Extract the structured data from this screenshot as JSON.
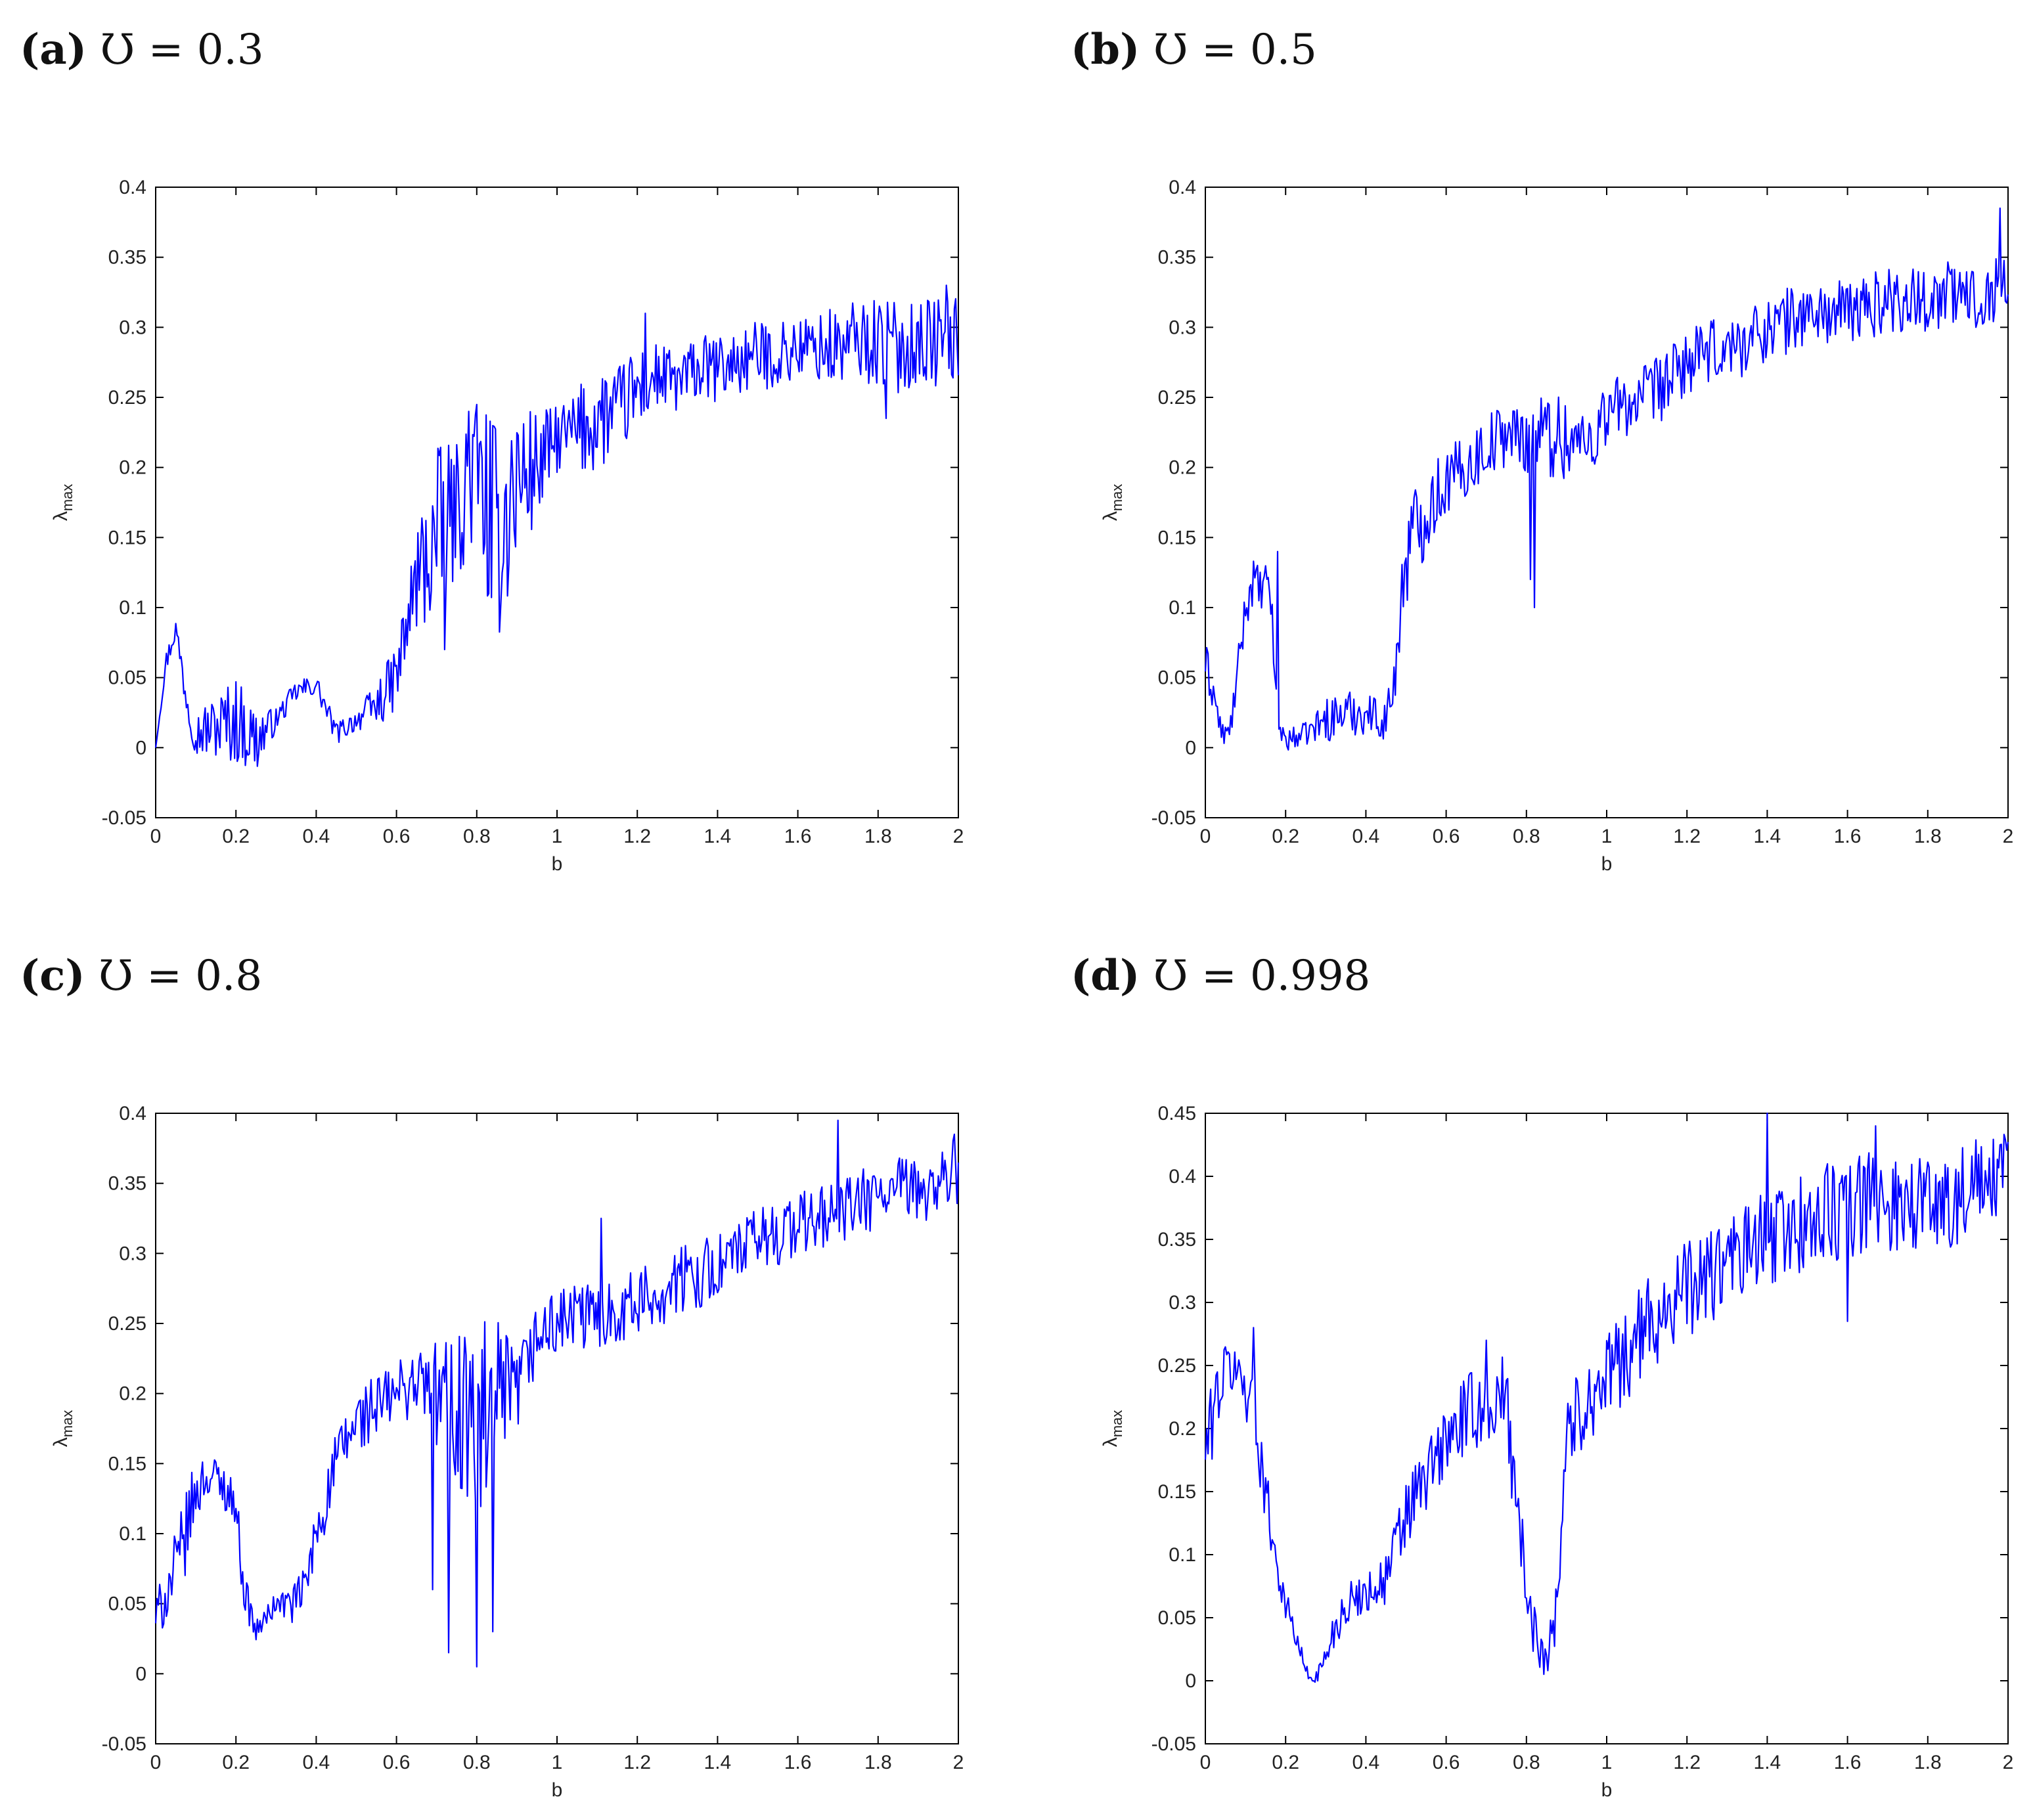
{
  "panels": [
    {
      "tag": "(a)",
      "symbol": "Ʊ",
      "equals": " = ",
      "value": "0.3"
    },
    {
      "tag": "(b)",
      "symbol": "Ʊ",
      "equals": " = ",
      "value": "0.5"
    },
    {
      "tag": "(c)",
      "symbol": "Ʊ",
      "equals": " = ",
      "value": "0.8"
    },
    {
      "tag": "(d)",
      "symbol": "Ʊ",
      "equals": " = ",
      "value": "0.998"
    }
  ],
  "colors": {
    "series": "#0000ff",
    "axis": "#000000"
  },
  "chart_data": [
    {
      "type": "line",
      "title": "(a) Ʊ = 0.3",
      "xlabel": "b",
      "ylabel": "λmax",
      "xlim": [
        0,
        2
      ],
      "ylim": [
        -0.05,
        0.4
      ],
      "xticks": [
        0,
        0.2,
        0.4,
        0.6,
        0.8,
        1,
        1.2,
        1.4,
        1.6,
        1.8,
        2
      ],
      "yticks": [
        -0.05,
        0,
        0.05,
        0.1,
        0.15,
        0.2,
        0.25,
        0.3,
        0.35,
        0.4
      ],
      "grid": false,
      "series": [
        {
          "x": [
            0,
            0.025,
            0.05,
            0.075,
            0.1,
            0.15,
            0.2,
            0.25,
            0.3,
            0.35,
            0.4,
            0.45,
            0.5,
            0.55,
            0.6,
            0.65,
            0.7,
            0.75,
            0.8,
            0.85,
            0.9,
            0.95,
            1.0,
            1.05,
            1.1,
            1.15,
            1.2,
            1.25,
            1.3,
            1.35,
            1.4,
            1.45,
            1.5,
            1.55,
            1.6,
            1.65,
            1.7,
            1.75,
            1.8,
            1.85,
            1.9,
            1.95,
            2.0
          ],
          "y": [
            0.0,
            0.06,
            0.085,
            0.04,
            0.01,
            0.015,
            0.02,
            0.005,
            0.02,
            0.04,
            0.045,
            0.01,
            0.02,
            0.03,
            0.05,
            0.12,
            0.15,
            0.17,
            0.2,
            0.15,
            0.19,
            0.2,
            0.22,
            0.225,
            0.235,
            0.24,
            0.255,
            0.265,
            0.26,
            0.27,
            0.27,
            0.275,
            0.28,
            0.28,
            0.285,
            0.285,
            0.285,
            0.29,
            0.29,
            0.285,
            0.29,
            0.29,
            0.29
          ],
          "noise": [
            0,
            0.005,
            0.005,
            0.01,
            0.01,
            0.015,
            0.02,
            0.015,
            0.005,
            0.005,
            0.005,
            0.005,
            0.005,
            0.01,
            0.015,
            0.025,
            0.04,
            0.03,
            0.035,
            0.05,
            0.04,
            0.025,
            0.015,
            0.02,
            0.025,
            0.02,
            0.02,
            0.015,
            0.015,
            0.015,
            0.015,
            0.015,
            0.015,
            0.015,
            0.015,
            0.015,
            0.02,
            0.02,
            0.02,
            0.02,
            0.02,
            0.02,
            0.02
          ],
          "spikes": [
            [
              0.72,
              0.07
            ],
            [
              0.78,
              0.24
            ],
            [
              0.83,
              0.11
            ],
            [
              1.22,
              0.31
            ],
            [
              1.82,
              0.235
            ],
            [
              1.97,
              0.33
            ]
          ]
        }
      ]
    },
    {
      "type": "line",
      "title": "(b) Ʊ = 0.5",
      "xlabel": "b",
      "ylabel": "λmax",
      "xlim": [
        0,
        2
      ],
      "ylim": [
        -0.05,
        0.4
      ],
      "xticks": [
        0,
        0.2,
        0.4,
        0.6,
        0.8,
        1,
        1.2,
        1.4,
        1.6,
        1.8,
        2
      ],
      "yticks": [
        -0.05,
        0,
        0.05,
        0.1,
        0.15,
        0.2,
        0.25,
        0.3,
        0.35,
        0.4
      ],
      "grid": false,
      "series": [
        {
          "x": [
            0,
            0.02,
            0.04,
            0.06,
            0.08,
            0.1,
            0.12,
            0.14,
            0.16,
            0.18,
            0.2,
            0.25,
            0.3,
            0.35,
            0.4,
            0.45,
            0.47,
            0.5,
            0.55,
            0.6,
            0.65,
            0.7,
            0.75,
            0.8,
            0.85,
            0.9,
            0.95,
            1.0,
            1.05,
            1.1,
            1.15,
            1.2,
            1.25,
            1.3,
            1.35,
            1.4,
            1.45,
            1.5,
            1.55,
            1.6,
            1.65,
            1.7,
            1.75,
            1.8,
            1.85,
            1.9,
            1.95,
            2.0
          ],
          "y": [
            0.06,
            0.04,
            0.01,
            0.01,
            0.05,
            0.1,
            0.12,
            0.11,
            0.12,
            0.02,
            0.005,
            0.01,
            0.02,
            0.025,
            0.025,
            0.02,
            0.045,
            0.14,
            0.17,
            0.19,
            0.2,
            0.215,
            0.225,
            0.22,
            0.225,
            0.22,
            0.215,
            0.24,
            0.245,
            0.25,
            0.26,
            0.275,
            0.28,
            0.285,
            0.29,
            0.3,
            0.305,
            0.31,
            0.31,
            0.31,
            0.315,
            0.32,
            0.32,
            0.32,
            0.325,
            0.32,
            0.325,
            0.33
          ],
          "noise": [
            0.01,
            0.01,
            0.005,
            0.005,
            0.01,
            0.01,
            0.01,
            0.01,
            0.01,
            0.01,
            0.005,
            0.005,
            0.01,
            0.01,
            0.01,
            0.01,
            0.01,
            0.025,
            0.02,
            0.015,
            0.015,
            0.015,
            0.015,
            0.015,
            0.02,
            0.02,
            0.02,
            0.015,
            0.015,
            0.015,
            0.015,
            0.015,
            0.015,
            0.015,
            0.015,
            0.015,
            0.015,
            0.015,
            0.015,
            0.015,
            0.015,
            0.015,
            0.015,
            0.015,
            0.015,
            0.015,
            0.015,
            0.015
          ],
          "spikes": [
            [
              0.18,
              0.14
            ],
            [
              0.81,
              0.12
            ],
            [
              0.82,
              0.1
            ],
            [
              1.98,
              0.385
            ]
          ]
        }
      ]
    },
    {
      "type": "line",
      "title": "(c) Ʊ = 0.8",
      "xlabel": "b",
      "ylabel": "λmax",
      "xlim": [
        0,
        2
      ],
      "ylim": [
        -0.05,
        0.4
      ],
      "xticks": [
        0,
        0.2,
        0.4,
        0.6,
        0.8,
        1,
        1.2,
        1.4,
        1.6,
        1.8,
        2
      ],
      "yticks": [
        -0.05,
        0,
        0.05,
        0.1,
        0.15,
        0.2,
        0.25,
        0.3,
        0.35,
        0.4
      ],
      "grid": false,
      "series": [
        {
          "x": [
            0,
            0.03,
            0.06,
            0.09,
            0.12,
            0.15,
            0.18,
            0.2,
            0.22,
            0.25,
            0.3,
            0.35,
            0.38,
            0.4,
            0.45,
            0.5,
            0.55,
            0.6,
            0.65,
            0.7,
            0.75,
            0.8,
            0.85,
            0.9,
            0.95,
            1.0,
            1.05,
            1.1,
            1.15,
            1.2,
            1.25,
            1.3,
            1.35,
            1.4,
            1.45,
            1.5,
            1.55,
            1.6,
            1.65,
            1.7,
            1.75,
            1.8,
            1.85,
            1.9,
            1.95,
            2.0
          ],
          "y": [
            0.04,
            0.06,
            0.08,
            0.12,
            0.14,
            0.14,
            0.13,
            0.12,
            0.06,
            0.03,
            0.05,
            0.05,
            0.07,
            0.1,
            0.15,
            0.18,
            0.19,
            0.2,
            0.21,
            0.2,
            0.19,
            0.17,
            0.19,
            0.2,
            0.24,
            0.25,
            0.255,
            0.255,
            0.26,
            0.265,
            0.27,
            0.28,
            0.285,
            0.29,
            0.3,
            0.31,
            0.315,
            0.32,
            0.325,
            0.33,
            0.335,
            0.34,
            0.345,
            0.345,
            0.35,
            0.36
          ],
          "noise": [
            0.01,
            0.015,
            0.02,
            0.015,
            0.01,
            0.01,
            0.01,
            0.01,
            0.01,
            0.005,
            0.005,
            0.01,
            0.01,
            0.015,
            0.015,
            0.015,
            0.015,
            0.015,
            0.015,
            0.025,
            0.04,
            0.05,
            0.04,
            0.02,
            0.015,
            0.015,
            0.015,
            0.015,
            0.015,
            0.015,
            0.015,
            0.015,
            0.015,
            0.015,
            0.015,
            0.015,
            0.015,
            0.015,
            0.015,
            0.015,
            0.015,
            0.015,
            0.015,
            0.015,
            0.015,
            0.015
          ],
          "spikes": [
            [
              0.69,
              0.06
            ],
            [
              0.73,
              0.015
            ],
            [
              0.77,
              0.24
            ],
            [
              0.8,
              0.005
            ],
            [
              0.84,
              0.03
            ],
            [
              1.11,
              0.325
            ],
            [
              1.7,
              0.395
            ],
            [
              1.99,
              0.385
            ]
          ]
        }
      ]
    },
    {
      "type": "line",
      "title": "(d) Ʊ = 0.998",
      "xlabel": "b",
      "ylabel": "λmax",
      "xlim": [
        0,
        2
      ],
      "ylim": [
        -0.05,
        0.45
      ],
      "xticks": [
        0,
        0.2,
        0.4,
        0.6,
        0.8,
        1,
        1.2,
        1.4,
        1.6,
        1.8,
        2
      ],
      "yticks": [
        -0.05,
        0,
        0.05,
        0.1,
        0.15,
        0.2,
        0.25,
        0.3,
        0.35,
        0.4,
        0.45
      ],
      "grid": false,
      "series": [
        {
          "x": [
            0,
            0.03,
            0.06,
            0.09,
            0.12,
            0.15,
            0.18,
            0.2,
            0.23,
            0.26,
            0.29,
            0.32,
            0.35,
            0.4,
            0.45,
            0.5,
            0.55,
            0.6,
            0.65,
            0.7,
            0.75,
            0.78,
            0.8,
            0.83,
            0.86,
            0.88,
            0.9,
            0.95,
            1.0,
            1.05,
            1.1,
            1.15,
            1.2,
            1.25,
            1.3,
            1.35,
            1.4,
            1.45,
            1.5,
            1.55,
            1.6,
            1.65,
            1.7,
            1.75,
            1.8,
            1.85,
            1.9,
            1.95,
            2.0
          ],
          "y": [
            0.18,
            0.23,
            0.25,
            0.24,
            0.22,
            0.15,
            0.09,
            0.06,
            0.03,
            0.0,
            0.01,
            0.04,
            0.06,
            0.07,
            0.08,
            0.13,
            0.16,
            0.19,
            0.21,
            0.22,
            0.22,
            0.14,
            0.06,
            0.03,
            0.03,
            0.08,
            0.2,
            0.22,
            0.24,
            0.26,
            0.28,
            0.3,
            0.31,
            0.32,
            0.33,
            0.34,
            0.35,
            0.36,
            0.36,
            0.37,
            0.37,
            0.38,
            0.38,
            0.38,
            0.38,
            0.38,
            0.39,
            0.39,
            0.4
          ],
          "noise": [
            0.02,
            0.02,
            0.015,
            0.015,
            0.02,
            0.015,
            0.01,
            0.01,
            0.005,
            0.003,
            0.005,
            0.01,
            0.01,
            0.01,
            0.015,
            0.02,
            0.02,
            0.02,
            0.02,
            0.02,
            0.025,
            0.03,
            0.015,
            0.015,
            0.02,
            0.02,
            0.02,
            0.02,
            0.02,
            0.025,
            0.025,
            0.025,
            0.025,
            0.025,
            0.025,
            0.025,
            0.025,
            0.025,
            0.025,
            0.025,
            0.025,
            0.025,
            0.025,
            0.025,
            0.025,
            0.025,
            0.025,
            0.025,
            0.025
          ],
          "spikes": [
            [
              0.12,
              0.28
            ],
            [
              0.7,
              0.27
            ],
            [
              1.4,
              0.45
            ],
            [
              1.6,
              0.285
            ],
            [
              1.67,
              0.44
            ],
            [
              1.98,
              0.425
            ]
          ]
        }
      ]
    }
  ]
}
